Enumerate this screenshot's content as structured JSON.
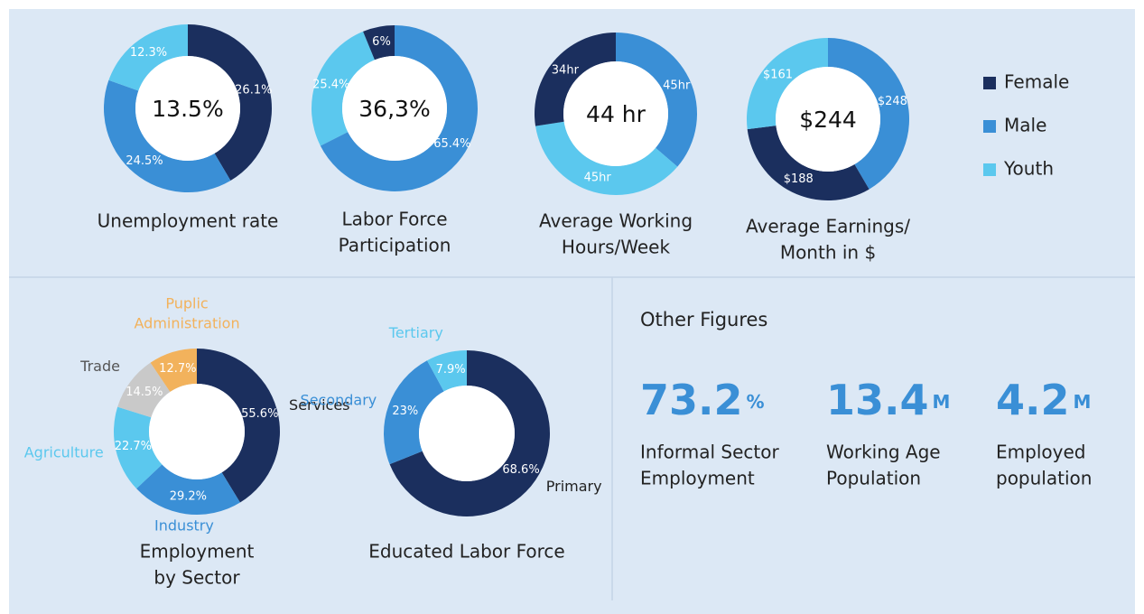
{
  "chart_data": [
    {
      "type": "donut",
      "title": [
        "Unemployment rate"
      ],
      "center_label": "13.5%",
      "values": [
        26.1,
        24.5,
        12.3
      ],
      "value_labels": [
        "26.1%",
        "24.5%",
        "12.3%"
      ],
      "colors": [
        "#1b2f5e",
        "#3a8fd6",
        "#5bc8ee"
      ]
    },
    {
      "type": "donut",
      "title": [
        "Labor Force",
        "Participation"
      ],
      "center_label": "36,3%",
      "values": [
        65.4,
        25.4,
        6
      ],
      "value_labels": [
        "65.4%",
        "25.4%",
        "6%"
      ],
      "colors": [
        "#3a8fd6",
        "#5bc8ee",
        "#1b2f5e"
      ]
    },
    {
      "type": "donut",
      "title": [
        "Average Working",
        "Hours/Week"
      ],
      "center_label": "44 hr",
      "values": [
        45,
        45,
        34
      ],
      "value_labels": [
        "45hr",
        "45hr",
        "34hr"
      ],
      "colors": [
        "#3a8fd6",
        "#5bc8ee",
        "#1b2f5e"
      ]
    },
    {
      "type": "donut",
      "title": [
        "Average Earnings/",
        "Month in $"
      ],
      "center_label": "$244",
      "values": [
        248,
        188,
        161
      ],
      "value_labels": [
        "$248",
        "$188",
        "$161"
      ],
      "colors": [
        "#3a8fd6",
        "#1b2f5e",
        "#5bc8ee"
      ]
    },
    {
      "type": "donut",
      "title": [
        "Employment",
        "by Sector"
      ],
      "categories": [
        "Services",
        "Industry",
        "Agriculture",
        "Trade",
        "Puplic Administration"
      ],
      "values": [
        55.6,
        29.2,
        22.7,
        14.5,
        12.7
      ],
      "value_labels": [
        "55.6%",
        "29.2%",
        "22.7%",
        "14.5%",
        "12.7%"
      ],
      "colors": [
        "#1b2f5e",
        "#3a8fd6",
        "#5bc8ee",
        "#c9c9c9",
        "#f2b25c"
      ]
    },
    {
      "type": "donut",
      "title": [
        "Educated Labor Force"
      ],
      "categories": [
        "Primary",
        "Secondary",
        "Tertiary"
      ],
      "values": [
        68.6,
        23,
        7.9
      ],
      "value_labels": [
        "68.6%",
        "23%",
        "7.9%"
      ],
      "colors": [
        "#1b2f5e",
        "#3a8fd6",
        "#5bc8ee"
      ]
    }
  ],
  "legend": [
    {
      "name": "Female",
      "color": "#1b2f5e"
    },
    {
      "name": "Male",
      "color": "#3a8fd6"
    },
    {
      "name": "Youth",
      "color": "#5bc8ee"
    }
  ],
  "other_figures": {
    "title": "Other Figures",
    "items": [
      {
        "value": "73.2",
        "unit": "%",
        "label": [
          "Informal Sector",
          "Employment"
        ]
      },
      {
        "value": "13.4",
        "unit": "M",
        "label": [
          "Working Age",
          "Population"
        ]
      },
      {
        "value": "4.2",
        "unit": "M",
        "label": [
          "Employed",
          "population"
        ]
      }
    ]
  }
}
